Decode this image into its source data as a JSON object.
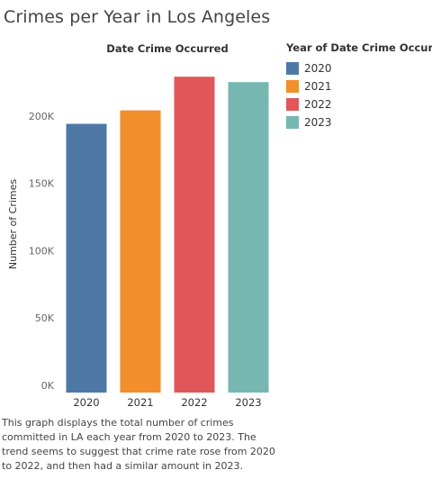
{
  "title": "Crimes per Year in Los Angeles",
  "caption": "This graph displays the total number of crimes committed in LA each year from 2020 to 2023. The trend seems to suggest that crime rate rose from 2020 to 2022, and then had a similar amount in 2023.",
  "legend": {
    "title": "Year of Date Crime Occurred",
    "items": [
      {
        "label": "2020",
        "color": "#4e79a7"
      },
      {
        "label": "2021",
        "color": "#f28e2b"
      },
      {
        "label": "2022",
        "color": "#e15759"
      },
      {
        "label": "2023",
        "color": "#76b7b2"
      }
    ]
  },
  "chart_data": {
    "type": "bar",
    "title": "Date Crime Occurred",
    "xlabel": "",
    "ylabel": "Number of Crimes",
    "categories": [
      "2020",
      "2021",
      "2022",
      "2023"
    ],
    "values": [
      199500,
      209500,
      234500,
      230500
    ],
    "colors": [
      "#4e79a7",
      "#f28e2b",
      "#e15759",
      "#76b7b2"
    ],
    "ylim": [
      0,
      250000
    ],
    "yticks": [
      0,
      50000,
      100000,
      150000,
      200000
    ],
    "ytick_labels": [
      "0K",
      "50K",
      "100K",
      "150K",
      "200K"
    ],
    "grid": false,
    "legend_position": "right"
  }
}
